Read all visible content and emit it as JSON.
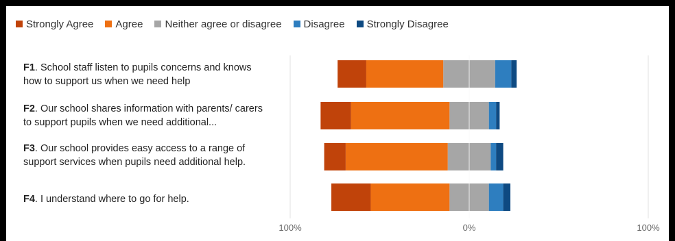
{
  "chart_data": {
    "type": "bar",
    "subtype": "diverging-stacked-horizontal",
    "legend_position": "top-left",
    "grid": true,
    "colors": {
      "Strongly Agree": "#c0430a",
      "Agree": "#ee7012",
      "Neither agree or disagree": "#a6a6a6",
      "Disagree": "#2e7ebf",
      "Strongly Disagree": "#0e4a82"
    },
    "series_names": [
      "Strongly Agree",
      "Agree",
      "Neither agree or disagree",
      "Disagree",
      "Strongly Disagree"
    ],
    "x_tick_labels": [
      "100%",
      "0%",
      "100%"
    ],
    "xlim": [
      -100,
      100
    ],
    "categories": [
      {
        "code": "F1",
        "text": ". School staff listen to pupils concerns and knows how to support us when we need help",
        "values": {
          "Strongly Agree": 16,
          "Agree": 43,
          "Neither agree or disagree": 29,
          "Disagree": 9,
          "Strongly Disagree": 3
        }
      },
      {
        "code": "F2",
        "text": ". Our school shares information with parents/ carers to support pupils when we need additional...",
        "values": {
          "Strongly Agree": 17,
          "Agree": 55,
          "Neither agree or disagree": 22,
          "Disagree": 4,
          "Strongly Disagree": 2
        }
      },
      {
        "code": "F3",
        "text": ". Our school provides easy access to a range of support services when pupils need additional help.",
        "values": {
          "Strongly Agree": 12,
          "Agree": 57,
          "Neither agree or disagree": 24,
          "Disagree": 3,
          "Strongly Disagree": 4
        }
      },
      {
        "code": "F4",
        "text": ". I understand where to go for help.",
        "values": {
          "Strongly Agree": 22,
          "Agree": 44,
          "Neither agree or disagree": 22,
          "Disagree": 8,
          "Strongly Disagree": 4
        }
      }
    ]
  }
}
